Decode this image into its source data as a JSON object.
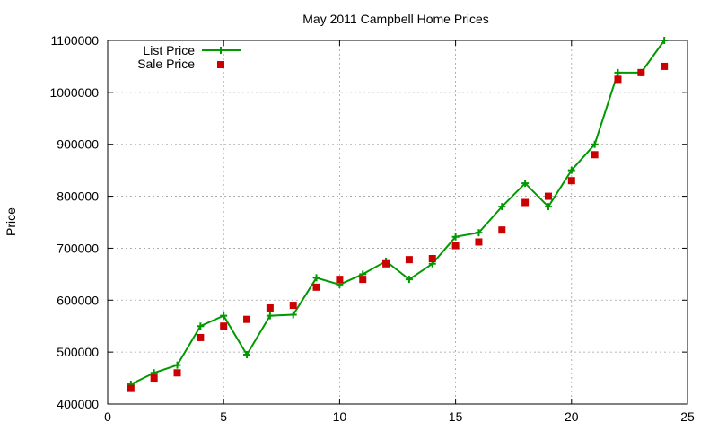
{
  "chart_data": {
    "type": "line",
    "title": "May 2011 Campbell Home Prices",
    "xlabel": "",
    "ylabel": "Price",
    "xlim": [
      0,
      25
    ],
    "ylim": [
      400000,
      1100000
    ],
    "xticks": [
      0,
      5,
      10,
      15,
      20,
      25
    ],
    "yticks": [
      400000,
      500000,
      600000,
      700000,
      800000,
      900000,
      1000000,
      1100000
    ],
    "xtick_labels": [
      "0",
      "5",
      "10",
      "15",
      "20",
      "25"
    ],
    "ytick_labels": [
      "400000",
      "500000",
      "600000",
      "700000",
      "800000",
      "900000",
      "1000000",
      "1100000"
    ],
    "grid": true,
    "legend_position": "top-left",
    "x": [
      1,
      2,
      3,
      4,
      5,
      6,
      7,
      8,
      9,
      10,
      11,
      12,
      13,
      14,
      15,
      16,
      17,
      18,
      19,
      20,
      21,
      22,
      23,
      24
    ],
    "series": [
      {
        "name": "List Price",
        "style": "line-plus",
        "color": "#009900",
        "values": [
          438000,
          460000,
          475000,
          550000,
          570000,
          495000,
          570000,
          572000,
          643000,
          630000,
          650000,
          675000,
          640000,
          670000,
          722000,
          730000,
          780000,
          825000,
          780000,
          850000,
          900000,
          1038000,
          1038000,
          1100000
        ]
      },
      {
        "name": "Sale Price",
        "style": "square",
        "color": "#cc0000",
        "values": [
          430000,
          450000,
          460000,
          528000,
          550000,
          563000,
          585000,
          590000,
          625000,
          640000,
          640000,
          670000,
          678000,
          680000,
          705000,
          712000,
          735000,
          788000,
          800000,
          830000,
          880000,
          1025000,
          1038000,
          1050000
        ]
      }
    ]
  }
}
